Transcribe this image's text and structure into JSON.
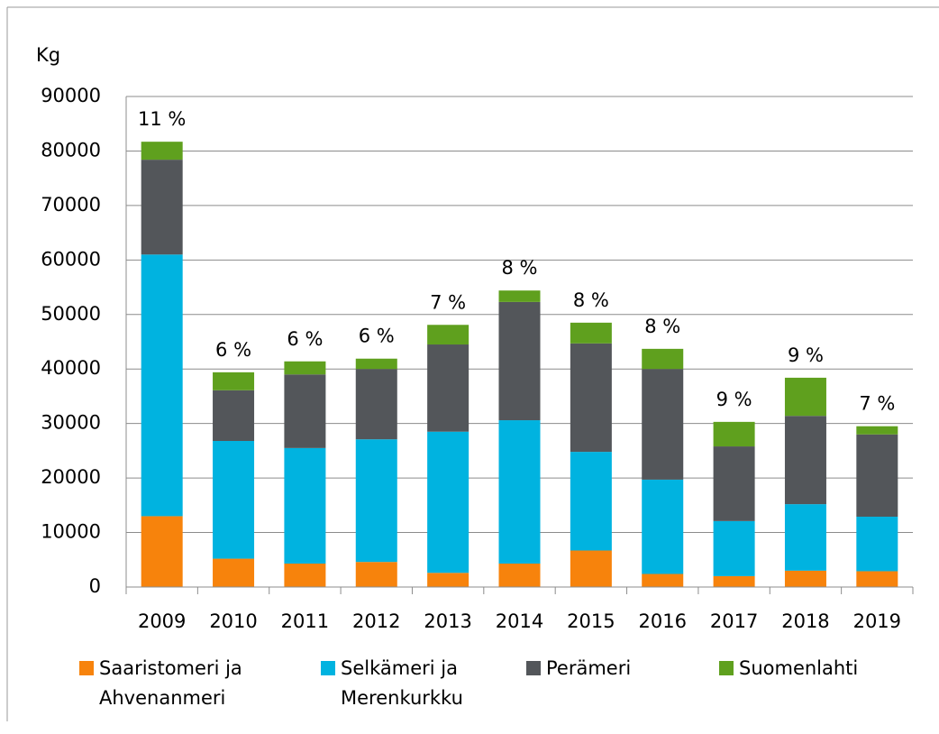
{
  "chart_data": {
    "type": "stacked_bar",
    "y_label": "Kg",
    "categories": [
      "2009",
      "2010",
      "2011",
      "2012",
      "2013",
      "2014",
      "2015",
      "2016",
      "2017",
      "2018",
      "2019"
    ],
    "series": [
      {
        "name": "Saaristomeri ja Ahvenanmeri",
        "color": "#f7830c",
        "values": [
          13000,
          5200,
          4300,
          4600,
          2600,
          4300,
          6700,
          2400,
          2000,
          3000,
          2900
        ]
      },
      {
        "name": "Selkämeri ja Merenkurkku",
        "color": "#00b3e0",
        "values": [
          48000,
          21600,
          21200,
          22500,
          25900,
          26300,
          18100,
          17300,
          10100,
          12200,
          10000
        ]
      },
      {
        "name": "Perämeri",
        "color": "#53565a",
        "values": [
          17400,
          9300,
          13500,
          12900,
          16000,
          21700,
          19900,
          20300,
          13700,
          16200,
          15100
        ]
      },
      {
        "name": "Suomenlahti",
        "color": "#5fa01e",
        "values": [
          3300,
          3300,
          2400,
          1900,
          3600,
          2100,
          3800,
          3700,
          4500,
          7000,
          1500
        ]
      }
    ],
    "annotations": [
      "11 %",
      "6 %",
      "6 %",
      "6 %",
      "7 %",
      "8 %",
      "8 %",
      "8 %",
      "9 %",
      "9 %",
      "7 %"
    ],
    "ylim": [
      0,
      90000
    ],
    "yticks": [
      0,
      10000,
      20000,
      30000,
      40000,
      50000,
      60000,
      70000,
      80000,
      90000
    ],
    "grid": true
  }
}
